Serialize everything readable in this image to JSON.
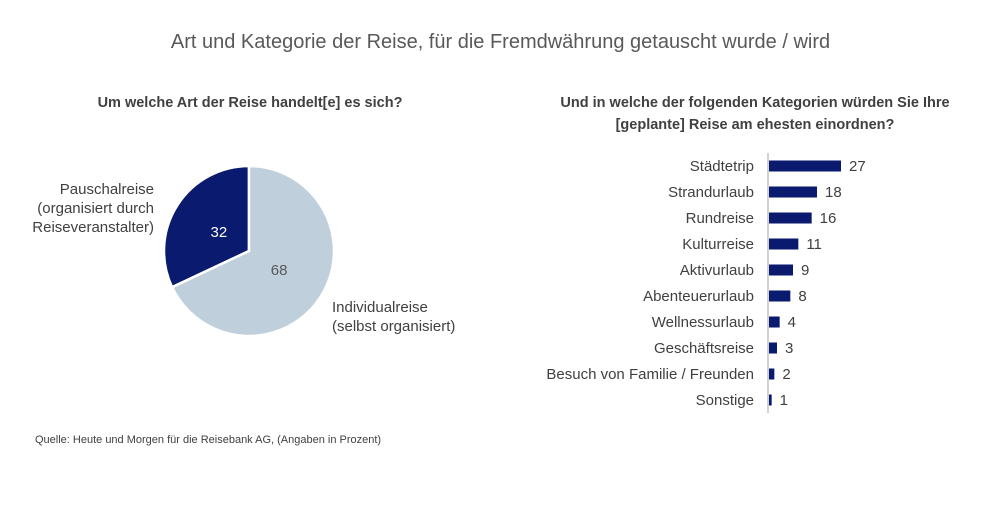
{
  "title": "Art und Kategorie der Reise, für die Fremdwährung getauscht wurde / wird",
  "source": "Quelle: Heute und Morgen für die Reisebank AG, (Angaben in Prozent)",
  "colors": {
    "dark": "#0a1a6e",
    "light": "#bfd0dc"
  },
  "chart_data": [
    {
      "type": "pie",
      "title": "Um welche Art der Reise handelt[e] es sich?",
      "slices": [
        {
          "name": "Pauschalreise (organisiert durch Reiseveranstalter)",
          "label_lines": [
            "Pauschalreise",
            "(organisiert durch",
            "Reiseveranstalter)"
          ],
          "value": 32,
          "color": "#0a1a6e"
        },
        {
          "name": "Individualreise (selbst organisiert)",
          "label_lines": [
            "Individualreise",
            "(selbst organisiert)"
          ],
          "value": 68,
          "color": "#bfd0dc"
        }
      ]
    },
    {
      "type": "bar",
      "orientation": "horizontal",
      "title_lines": [
        "Und in welche der folgenden Kategorien würden Sie Ihre",
        "[geplante] Reise am ehesten einordnen?"
      ],
      "categories": [
        "Städtetrip",
        "Strandurlaub",
        "Rundreise",
        "Kulturreise",
        "Aktivurlaub",
        "Abenteuerurlaub",
        "Wellnessurlaub",
        "Geschäftsreise",
        "Besuch von Familie / Freunden",
        "Sonstige"
      ],
      "values": [
        27,
        18,
        16,
        11,
        9,
        8,
        4,
        3,
        2,
        1
      ],
      "color": "#0a1a6e",
      "xlim": [
        0,
        30
      ]
    }
  ]
}
